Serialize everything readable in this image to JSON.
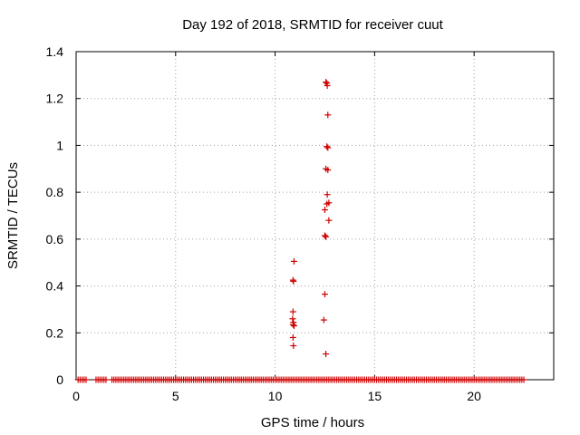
{
  "chart_data": {
    "type": "scatter",
    "title": "Day 192 of 2018, SRMTID for receiver cuut",
    "xlabel": "GPS time / hours",
    "ylabel": "SRMTID / TECUs",
    "xlim": [
      0,
      24
    ],
    "ylim": [
      0,
      1.4
    ],
    "xticks": [
      0,
      5,
      10,
      15,
      20
    ],
    "yticks": [
      0,
      0.2,
      0.4,
      0.6,
      0.8,
      1,
      1.2,
      1.4
    ],
    "xtick_labels": [
      "0",
      "5",
      "10",
      "15",
      "20"
    ],
    "ytick_labels": [
      "0",
      "0.2",
      "0.4",
      "0.6",
      "0.8",
      "1",
      "1.2",
      "1.4"
    ],
    "grid": true,
    "marker": "+",
    "color": "#d00000",
    "baseline": {
      "y": 0,
      "x_ranges": [
        [
          0.1,
          0.5
        ],
        [
          1.0,
          1.5
        ],
        [
          1.8,
          3.8
        ],
        [
          3.9,
          22.5
        ]
      ],
      "step": 0.1
    },
    "series": [
      {
        "name": "SRMTID",
        "points": [
          [
            10.95,
            0.505
          ],
          [
            10.9,
            0.425
          ],
          [
            10.92,
            0.42
          ],
          [
            10.9,
            0.29
          ],
          [
            10.88,
            0.26
          ],
          [
            10.92,
            0.245
          ],
          [
            10.9,
            0.235
          ],
          [
            10.95,
            0.23
          ],
          [
            10.9,
            0.18
          ],
          [
            10.92,
            0.145
          ],
          [
            12.55,
            1.27
          ],
          [
            12.6,
            1.265
          ],
          [
            12.62,
            1.255
          ],
          [
            12.65,
            1.13
          ],
          [
            12.6,
            0.995
          ],
          [
            12.65,
            0.99
          ],
          [
            12.55,
            0.9
          ],
          [
            12.65,
            0.895
          ],
          [
            12.62,
            0.79
          ],
          [
            12.7,
            0.755
          ],
          [
            12.6,
            0.75
          ],
          [
            12.5,
            0.725
          ],
          [
            12.7,
            0.68
          ],
          [
            12.5,
            0.615
          ],
          [
            12.55,
            0.61
          ],
          [
            12.5,
            0.365
          ],
          [
            12.45,
            0.255
          ],
          [
            12.55,
            0.11
          ]
        ]
      }
    ]
  }
}
